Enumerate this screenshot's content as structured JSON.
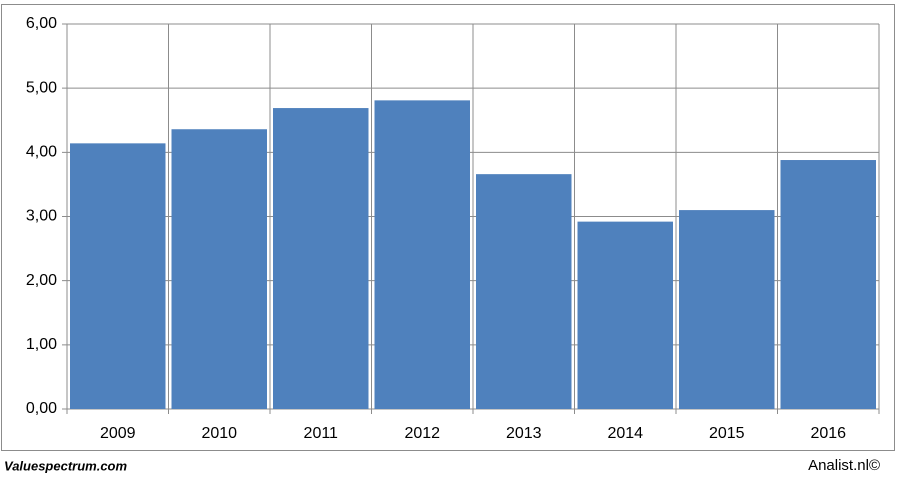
{
  "chart_data": {
    "type": "bar",
    "categories": [
      "2009",
      "2010",
      "2011",
      "2012",
      "2013",
      "2014",
      "2015",
      "2016"
    ],
    "values": [
      4.14,
      4.36,
      4.69,
      4.81,
      3.66,
      2.92,
      3.1,
      3.88
    ],
    "color": "#4f81bd",
    "ylim": [
      0,
      6
    ],
    "yticks": [
      {
        "value": 0,
        "label": "0,00"
      },
      {
        "value": 1,
        "label": "1,00"
      },
      {
        "value": 2,
        "label": "2,00"
      },
      {
        "value": 3,
        "label": "3,00"
      },
      {
        "value": 4,
        "label": "4,00"
      },
      {
        "value": 5,
        "label": "5,00"
      },
      {
        "value": 6,
        "label": "6,00"
      }
    ],
    "grid": true
  },
  "footer": {
    "left": "Valuespectrum.com",
    "right": "Analist.nl©"
  }
}
